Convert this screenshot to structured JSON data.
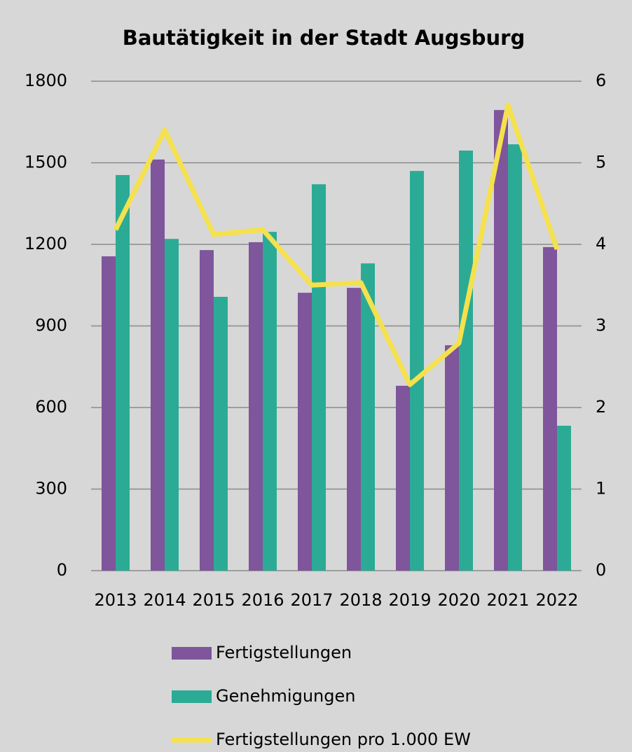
{
  "chart_data": {
    "type": "bar-line",
    "title": "Bautätigkeit in der Stadt Augsburg",
    "categories": [
      "2013",
      "2014",
      "2015",
      "2016",
      "2017",
      "2018",
      "2019",
      "2020",
      "2021",
      "2022"
    ],
    "series": [
      {
        "name": "Fertigstellungen",
        "type": "bar",
        "color": "#7f559b",
        "values": [
          1156,
          1512,
          1179,
          1208,
          1022,
          1040,
          680,
          829,
          1694,
          1190
        ]
      },
      {
        "name": "Genehmigungen",
        "type": "bar",
        "color": "#2bab95",
        "values": [
          1455,
          1220,
          1007,
          1246,
          1421,
          1130,
          1470,
          1545,
          1568,
          533
        ]
      },
      {
        "name": "Fertigstellungen pro 1.000 EW",
        "type": "line",
        "axis": "y2",
        "color": "#f5e14d",
        "values": [
          4.18,
          5.4,
          4.12,
          4.18,
          3.5,
          3.53,
          2.28,
          2.79,
          5.71,
          3.94
        ]
      }
    ],
    "ylim": [
      0,
      1800
    ],
    "yticks": [
      0,
      300,
      600,
      900,
      1200,
      1500,
      1800
    ],
    "y2lim": [
      0,
      6
    ],
    "y2ticks": [
      0,
      1,
      2,
      3,
      4,
      5,
      6
    ],
    "grid": true,
    "legend": "bottom"
  }
}
